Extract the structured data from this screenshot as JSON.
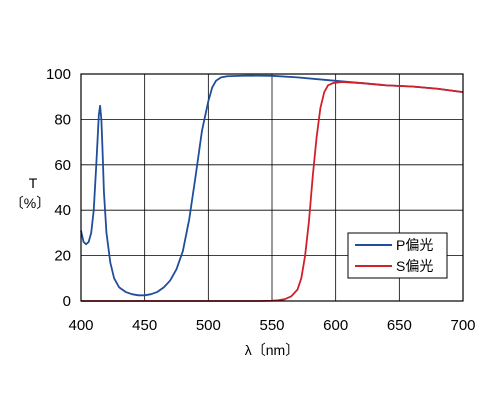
{
  "chart_data": {
    "type": "line",
    "title": "",
    "xlabel": "λ〔nm〕",
    "ylabel_line1": "T",
    "ylabel_line2": "〔%〕",
    "xlim": [
      400,
      700
    ],
    "ylim": [
      0,
      100
    ],
    "x_ticks": [
      400,
      450,
      500,
      550,
      600,
      650,
      700
    ],
    "y_ticks": [
      0,
      20,
      40,
      60,
      80,
      100
    ],
    "grid": true,
    "legend_position": "lower-right",
    "series": [
      {
        "name": "P偏光",
        "color": "#1f4e9a",
        "points": [
          [
            400,
            31
          ],
          [
            402,
            26
          ],
          [
            404,
            25
          ],
          [
            406,
            26
          ],
          [
            408,
            30
          ],
          [
            410,
            40
          ],
          [
            412,
            60
          ],
          [
            414,
            82
          ],
          [
            415,
            86
          ],
          [
            416,
            80
          ],
          [
            417,
            65
          ],
          [
            418,
            48
          ],
          [
            420,
            30
          ],
          [
            423,
            17
          ],
          [
            426,
            10
          ],
          [
            430,
            6
          ],
          [
            435,
            4
          ],
          [
            440,
            3
          ],
          [
            445,
            2.5
          ],
          [
            450,
            2.5
          ],
          [
            455,
            3
          ],
          [
            460,
            4
          ],
          [
            465,
            6
          ],
          [
            470,
            9
          ],
          [
            475,
            14
          ],
          [
            480,
            22
          ],
          [
            485,
            36
          ],
          [
            490,
            55
          ],
          [
            495,
            75
          ],
          [
            500,
            88
          ],
          [
            503,
            94
          ],
          [
            506,
            97
          ],
          [
            510,
            98.5
          ],
          [
            515,
            99
          ],
          [
            530,
            99.3
          ],
          [
            550,
            99.2
          ],
          [
            570,
            98.5
          ],
          [
            590,
            97.5
          ],
          [
            600,
            97
          ],
          [
            620,
            96
          ],
          [
            640,
            95
          ],
          [
            660,
            94.5
          ],
          [
            680,
            93.5
          ],
          [
            700,
            92
          ]
        ]
      },
      {
        "name": "S偏光",
        "color": "#d1202a",
        "points": [
          [
            400,
            0
          ],
          [
            450,
            0
          ],
          [
            500,
            0
          ],
          [
            540,
            0
          ],
          [
            550,
            0.1
          ],
          [
            555,
            0.3
          ],
          [
            560,
            0.8
          ],
          [
            565,
            2
          ],
          [
            570,
            5
          ],
          [
            573,
            10
          ],
          [
            576,
            20
          ],
          [
            579,
            35
          ],
          [
            582,
            55
          ],
          [
            585,
            72
          ],
          [
            588,
            85
          ],
          [
            591,
            92
          ],
          [
            594,
            95
          ],
          [
            598,
            96
          ],
          [
            605,
            96.5
          ],
          [
            620,
            96
          ],
          [
            640,
            95
          ],
          [
            660,
            94.5
          ],
          [
            680,
            93.5
          ],
          [
            700,
            92
          ]
        ]
      }
    ]
  }
}
